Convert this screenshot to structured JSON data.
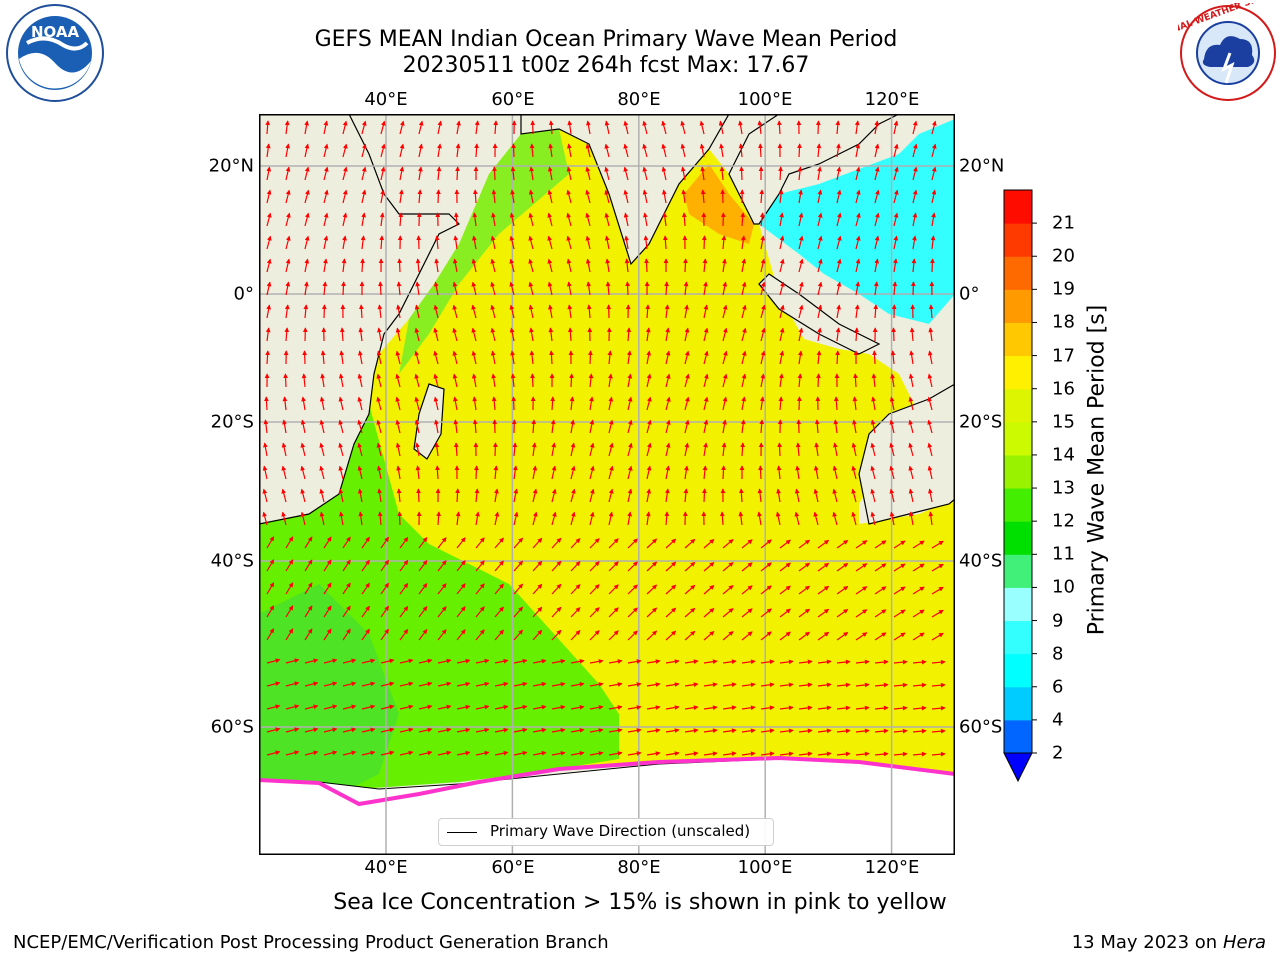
{
  "title_line1": "GEFS MEAN Indian Ocean Primary Wave Mean Period",
  "title_line2": "20230511 t00z 264h fcst   Max: 17.67",
  "map": {
    "lon_ticks": [
      "40°E",
      "60°E",
      "80°E",
      "100°E",
      "120°E"
    ],
    "lat_ticks": [
      "20°N",
      "0°",
      "20°S",
      "40°S",
      "60°S"
    ],
    "lon_values": [
      40,
      60,
      80,
      100,
      120
    ],
    "lat_values": [
      20,
      0,
      -20,
      -40,
      -60
    ],
    "ocean_accent": "#f2f200",
    "land_color": "#eeeede",
    "arrow_color": "#ff0000"
  },
  "legend_label": "Primary Wave Direction (unscaled)",
  "colorbar": {
    "label": "Primary Wave Mean Period [s]",
    "ticks": [
      "2",
      "4",
      "6",
      "8",
      "9",
      "10",
      "11",
      "12",
      "13",
      "14",
      "15",
      "16",
      "17",
      "18",
      "19",
      "20",
      "21"
    ],
    "colors": [
      "#0066ff",
      "#00ccff",
      "#00ffff",
      "#33ffff",
      "#99ffff",
      "#40f079",
      "#00e000",
      "#44ee00",
      "#99f200",
      "#ccfa00",
      "#ddf500",
      "#fff000",
      "#ffc800",
      "#ff9b00",
      "#ff6a00",
      "#ff3a00",
      "#ff0c00"
    ],
    "extend_color": "#0000ff"
  },
  "footer_note": "Sea Ice Concentration > 15% is shown in pink to yellow",
  "footer_left": "NCEP/EMC/Verification Post Processing Product Generation Branch",
  "footer_right_date": "13 May 2023 on",
  "footer_right_machine": "Hera",
  "logos": {
    "left": "NOAA",
    "right": "NATIONAL WEATHER SERVICE"
  }
}
